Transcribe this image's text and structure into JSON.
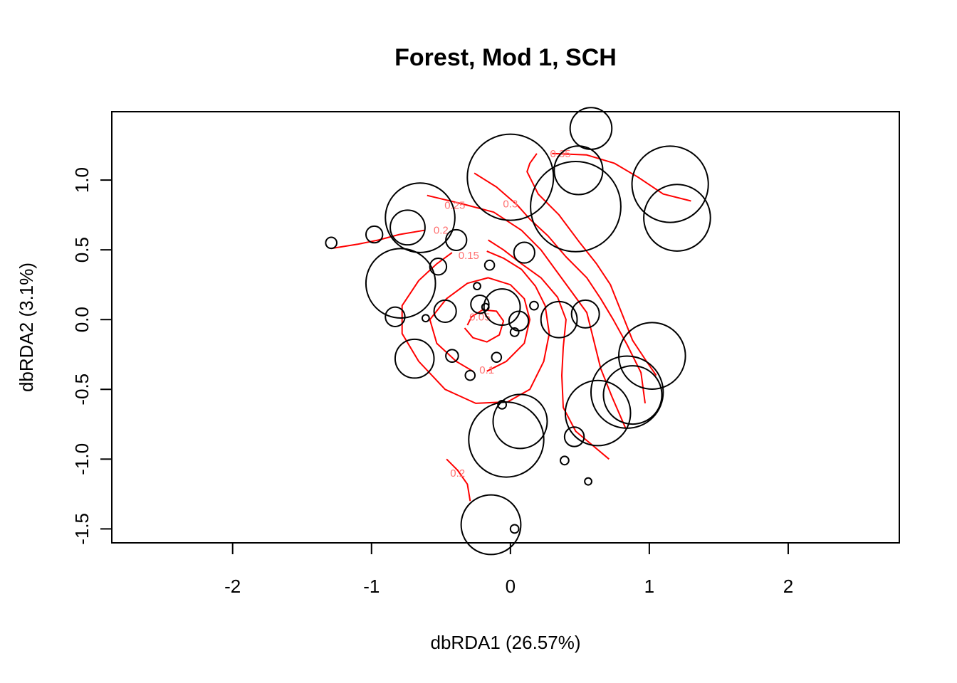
{
  "chart_data": {
    "type": "scatter",
    "title": "Forest, Mod 1, SCH",
    "xlabel": "dbRDA1 (26.57%)",
    "ylabel": "dbRDA2 (3.1%)",
    "xlim": [
      -2.87,
      2.8
    ],
    "ylim": [
      -1.6,
      1.49
    ],
    "x_ticks": [
      -2,
      -1,
      0,
      1,
      2
    ],
    "y_ticks": [
      -1.5,
      -1.0,
      -0.5,
      0.0,
      0.5,
      1.0
    ],
    "x_tick_labels": [
      "-2",
      "-1",
      "0",
      "1",
      "2"
    ],
    "y_tick_labels": [
      "-1.5",
      "-1.0",
      "-0.5",
      "0.0",
      "0.5",
      "1.0"
    ],
    "grid": false,
    "legend": "none",
    "point_color": "#000000",
    "contour_color": "#ff0000",
    "contour_label_color": "#ff7070",
    "points": [
      {
        "x": 0.58,
        "y": 1.37,
        "size": 0.3
      },
      {
        "x": 0.0,
        "y": 1.02,
        "size": 0.62
      },
      {
        "x": 0.49,
        "y": 1.07,
        "size": 0.35
      },
      {
        "x": 1.15,
        "y": 0.97,
        "size": 0.55
      },
      {
        "x": 0.47,
        "y": 0.81,
        "size": 0.65
      },
      {
        "x": 1.2,
        "y": 0.73,
        "size": 0.48
      },
      {
        "x": -0.65,
        "y": 0.73,
        "size": 0.5
      },
      {
        "x": -0.74,
        "y": 0.66,
        "size": 0.25
      },
      {
        "x": -0.98,
        "y": 0.61,
        "size": 0.12
      },
      {
        "x": -1.29,
        "y": 0.55,
        "size": 0.08
      },
      {
        "x": -0.39,
        "y": 0.57,
        "size": 0.15
      },
      {
        "x": 0.1,
        "y": 0.48,
        "size": 0.15
      },
      {
        "x": -0.52,
        "y": 0.38,
        "size": 0.12
      },
      {
        "x": -0.15,
        "y": 0.39,
        "size": 0.07
      },
      {
        "x": -0.79,
        "y": 0.26,
        "size": 0.5
      },
      {
        "x": -0.24,
        "y": 0.24,
        "size": 0.05
      },
      {
        "x": -0.22,
        "y": 0.11,
        "size": 0.13
      },
      {
        "x": -0.18,
        "y": 0.09,
        "size": 0.05
      },
      {
        "x": -0.06,
        "y": 0.09,
        "size": 0.26
      },
      {
        "x": 0.17,
        "y": 0.1,
        "size": 0.06
      },
      {
        "x": -0.47,
        "y": 0.06,
        "size": 0.16
      },
      {
        "x": -0.83,
        "y": 0.02,
        "size": 0.14
      },
      {
        "x": -0.61,
        "y": 0.01,
        "size": 0.05
      },
      {
        "x": 0.35,
        "y": 0.0,
        "size": 0.26
      },
      {
        "x": 0.54,
        "y": 0.04,
        "size": 0.2
      },
      {
        "x": 0.06,
        "y": -0.01,
        "size": 0.14
      },
      {
        "x": 0.03,
        "y": -0.09,
        "size": 0.06
      },
      {
        "x": -0.42,
        "y": -0.26,
        "size": 0.09
      },
      {
        "x": -0.1,
        "y": -0.27,
        "size": 0.07
      },
      {
        "x": -0.69,
        "y": -0.28,
        "size": 0.28
      },
      {
        "x": 1.02,
        "y": -0.26,
        "size": 0.48
      },
      {
        "x": -0.29,
        "y": -0.4,
        "size": 0.07
      },
      {
        "x": 0.84,
        "y": -0.52,
        "size": 0.52
      },
      {
        "x": 0.88,
        "y": -0.54,
        "size": 0.42
      },
      {
        "x": -0.06,
        "y": -0.61,
        "size": 0.06
      },
      {
        "x": 0.63,
        "y": -0.67,
        "size": 0.47
      },
      {
        "x": 0.07,
        "y": -0.73,
        "size": 0.39
      },
      {
        "x": 0.46,
        "y": -0.84,
        "size": 0.14
      },
      {
        "x": -0.03,
        "y": -0.86,
        "size": 0.54
      },
      {
        "x": 0.39,
        "y": -1.01,
        "size": 0.06
      },
      {
        "x": 0.56,
        "y": -1.16,
        "size": 0.05
      },
      {
        "x": -0.14,
        "y": -1.47,
        "size": 0.43
      },
      {
        "x": 0.03,
        "y": -1.5,
        "size": 0.06
      }
    ],
    "contours": [
      {
        "level": 0.05,
        "label": "0.05",
        "points": [
          [
            -0.33,
            -0.06
          ],
          [
            -0.27,
            -0.13
          ],
          [
            -0.17,
            -0.16
          ],
          [
            -0.08,
            -0.11
          ],
          [
            -0.05,
            -0.01
          ],
          [
            -0.1,
            0.06
          ],
          [
            -0.2,
            0.07
          ],
          [
            -0.28,
            0.02
          ],
          [
            -0.31,
            -0.04
          ]
        ]
      },
      {
        "level": 0.1,
        "label": "0.1",
        "points": [
          [
            -0.17,
            -0.37
          ],
          [
            -0.03,
            -0.3
          ],
          [
            0.1,
            -0.17
          ],
          [
            0.14,
            0.0
          ],
          [
            0.1,
            0.15
          ],
          [
            0.0,
            0.25
          ],
          [
            -0.16,
            0.3
          ],
          [
            -0.31,
            0.26
          ],
          [
            -0.46,
            0.15
          ],
          [
            -0.58,
            0.0
          ],
          [
            -0.53,
            -0.17
          ],
          [
            -0.39,
            -0.3
          ],
          [
            -0.27,
            -0.37
          ]
        ]
      },
      {
        "level": 0.15,
        "label": "0.15",
        "points": [
          [
            -0.42,
            0.48
          ],
          [
            -0.53,
            0.4
          ],
          [
            -0.66,
            0.28
          ],
          [
            -0.78,
            0.1
          ],
          [
            -0.78,
            -0.1
          ],
          [
            -0.66,
            -0.3
          ],
          [
            -0.47,
            -0.5
          ],
          [
            -0.25,
            -0.6
          ],
          [
            -0.02,
            -0.59
          ],
          [
            0.14,
            -0.5
          ],
          [
            0.24,
            -0.3
          ],
          [
            0.28,
            -0.1
          ],
          [
            0.25,
            0.1
          ],
          [
            0.18,
            0.24
          ],
          [
            0.08,
            0.36
          ],
          [
            -0.05,
            0.44
          ],
          [
            -0.17,
            0.49
          ]
        ]
      },
      {
        "level": 0.2,
        "label": "0.2",
        "points": [
          [
            -1.29,
            0.51
          ],
          [
            -1.1,
            0.54
          ],
          [
            -0.95,
            0.57
          ],
          [
            -0.8,
            0.61
          ],
          [
            -0.62,
            0.64
          ]
        ]
      },
      {
        "level": 0.2,
        "label": "",
        "points": [
          [
            -0.16,
            0.57
          ],
          [
            -0.05,
            0.5
          ],
          [
            0.08,
            0.4
          ],
          [
            0.22,
            0.3
          ],
          [
            0.34,
            0.16
          ],
          [
            0.4,
            0.0
          ],
          [
            0.38,
            -0.2
          ],
          [
            0.37,
            -0.4
          ],
          [
            0.38,
            -0.63
          ],
          [
            0.47,
            -0.8
          ],
          [
            0.71,
            -1.0
          ]
        ]
      },
      {
        "level": 0.2,
        "label": "0.2",
        "points": [
          [
            -0.46,
            -1.0
          ],
          [
            -0.38,
            -1.08
          ],
          [
            -0.31,
            -1.18
          ],
          [
            -0.29,
            -1.3
          ]
        ]
      },
      {
        "level": 0.25,
        "label": "0.25",
        "points": [
          [
            -0.6,
            0.89
          ],
          [
            -0.35,
            0.83
          ],
          [
            -0.12,
            0.77
          ],
          [
            0.08,
            0.64
          ],
          [
            0.22,
            0.5
          ],
          [
            0.33,
            0.35
          ],
          [
            0.44,
            0.2
          ],
          [
            0.55,
            0.05
          ],
          [
            0.6,
            -0.15
          ],
          [
            0.65,
            -0.35
          ],
          [
            0.73,
            -0.55
          ],
          [
            0.83,
            -0.78
          ]
        ]
      },
      {
        "level": 0.3,
        "label": "0.3",
        "points": [
          [
            -0.26,
            1.05
          ],
          [
            -0.1,
            0.95
          ],
          [
            0.05,
            0.82
          ],
          [
            0.14,
            0.72
          ],
          [
            0.27,
            0.6
          ],
          [
            0.4,
            0.45
          ],
          [
            0.55,
            0.3
          ],
          [
            0.65,
            0.15
          ],
          [
            0.74,
            0.0
          ],
          [
            0.84,
            -0.18
          ],
          [
            0.94,
            -0.38
          ],
          [
            0.97,
            -0.6
          ]
        ]
      },
      {
        "level": 0.35,
        "label": "0.35",
        "points": [
          [
            0.3,
            1.19
          ],
          [
            0.55,
            1.18
          ],
          [
            0.75,
            1.12
          ],
          [
            0.92,
            1.02
          ],
          [
            1.1,
            0.9
          ],
          [
            1.3,
            0.85
          ]
        ]
      },
      {
        "level": 0.35,
        "label": "",
        "points": [
          [
            0.19,
            1.19
          ],
          [
            0.14,
            1.12
          ],
          [
            0.12,
            1.06
          ],
          [
            0.2,
            0.9
          ],
          [
            0.35,
            0.75
          ],
          [
            0.5,
            0.55
          ],
          [
            0.62,
            0.4
          ],
          [
            0.72,
            0.25
          ],
          [
            0.8,
            0.05
          ],
          [
            0.88,
            -0.15
          ],
          [
            0.98,
            -0.3
          ],
          [
            1.05,
            -0.4
          ]
        ]
      }
    ],
    "contour_labels": [
      {
        "text": "0.35",
        "x": 0.36,
        "y": 1.19
      },
      {
        "text": "0.3",
        "x": 0.0,
        "y": 0.83
      },
      {
        "text": "0.25",
        "x": -0.4,
        "y": 0.82
      },
      {
        "text": "0.2",
        "x": -0.5,
        "y": 0.64
      },
      {
        "text": "0.15",
        "x": -0.3,
        "y": 0.46
      },
      {
        "text": "0.05",
        "x": -0.22,
        "y": 0.02
      },
      {
        "text": "0.1",
        "x": -0.17,
        "y": -0.36
      },
      {
        "text": "0.2",
        "x": -0.38,
        "y": -1.1
      }
    ]
  }
}
